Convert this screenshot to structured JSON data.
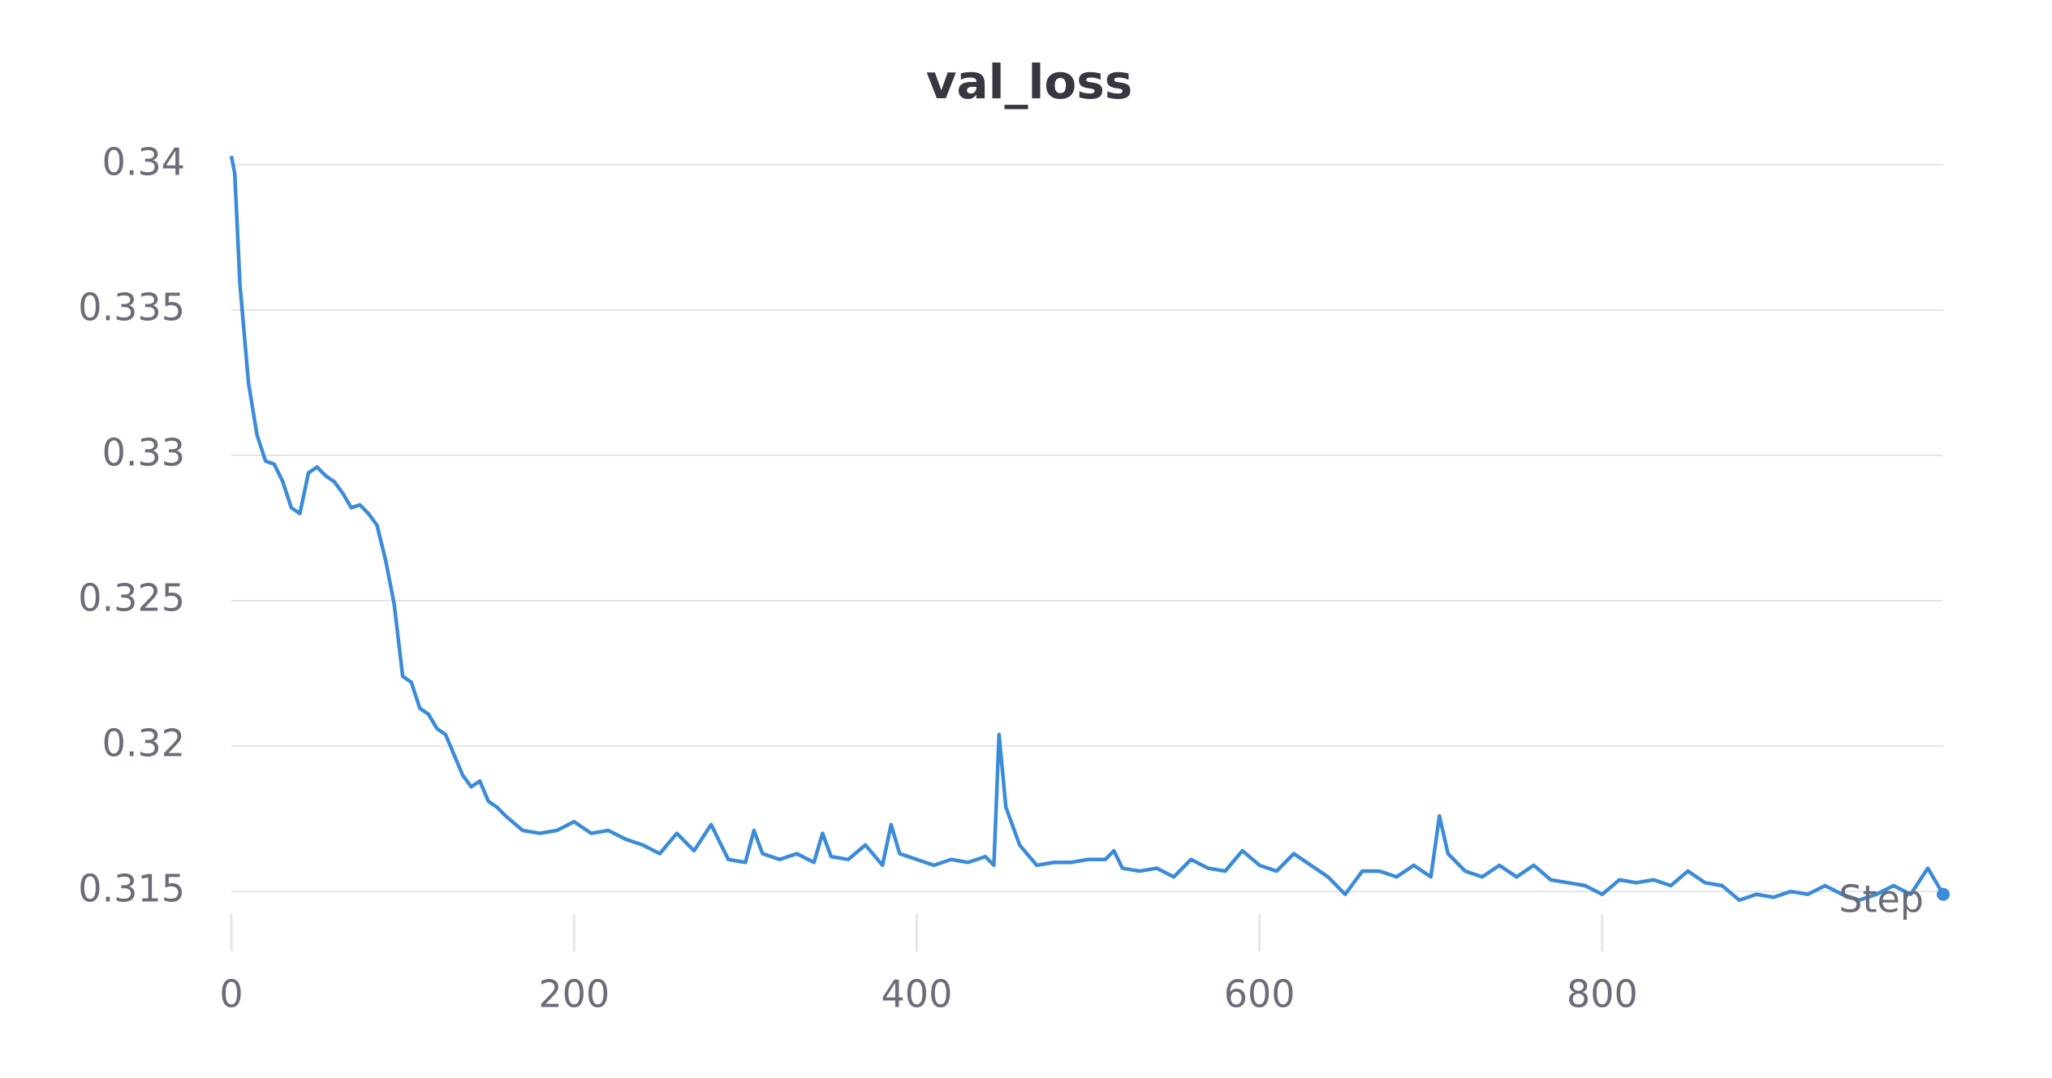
{
  "chart_data": {
    "type": "line",
    "title": "val_loss",
    "x_label": "Step",
    "xlim": [
      0,
      999
    ],
    "xticks": [
      0,
      200,
      400,
      600,
      800
    ],
    "ylim": [
      0.314,
      0.3405
    ],
    "yticks": [
      0.315,
      0.32,
      0.325,
      0.33,
      0.335,
      0.34
    ],
    "grid": true,
    "end_marker": true,
    "x": [
      0,
      2,
      5,
      10,
      15,
      20,
      25,
      30,
      35,
      40,
      45,
      50,
      55,
      60,
      65,
      70,
      75,
      80,
      85,
      90,
      95,
      100,
      105,
      110,
      115,
      120,
      125,
      130,
      135,
      140,
      145,
      150,
      155,
      160,
      170,
      180,
      190,
      200,
      210,
      220,
      230,
      240,
      250,
      260,
      270,
      280,
      290,
      300,
      305,
      310,
      320,
      330,
      340,
      345,
      350,
      360,
      370,
      380,
      385,
      390,
      400,
      410,
      420,
      430,
      440,
      445,
      448,
      452,
      460,
      470,
      480,
      490,
      500,
      510,
      515,
      520,
      530,
      540,
      550,
      560,
      570,
      580,
      590,
      600,
      610,
      620,
      630,
      640,
      650,
      660,
      670,
      680,
      690,
      700,
      705,
      710,
      720,
      730,
      740,
      750,
      760,
      770,
      780,
      790,
      800,
      810,
      820,
      830,
      840,
      850,
      860,
      870,
      880,
      890,
      900,
      910,
      920,
      930,
      940,
      950,
      960,
      970,
      980,
      990,
      999
    ],
    "series": [
      {
        "color": "#3a8bd8",
        "values": [
          0.3403,
          0.3397,
          0.3359,
          0.3325,
          0.3307,
          0.3298,
          0.3297,
          0.3291,
          0.3282,
          0.328,
          0.3294,
          0.3296,
          0.3293,
          0.3291,
          0.3287,
          0.3282,
          0.3283,
          0.328,
          0.3276,
          0.3264,
          0.3249,
          0.3224,
          0.3222,
          0.3213,
          0.3211,
          0.3206,
          0.3204,
          0.3197,
          0.319,
          0.3186,
          0.3188,
          0.3181,
          0.3179,
          0.3176,
          0.3171,
          0.317,
          0.3171,
          0.3174,
          0.317,
          0.3171,
          0.3168,
          0.3166,
          0.3163,
          0.317,
          0.3164,
          0.3173,
          0.3161,
          0.316,
          0.3171,
          0.3163,
          0.3161,
          0.3163,
          0.316,
          0.317,
          0.3162,
          0.3161,
          0.3166,
          0.3159,
          0.3173,
          0.3163,
          0.3161,
          0.3159,
          0.3161,
          0.316,
          0.3162,
          0.3159,
          0.3204,
          0.3179,
          0.3166,
          0.3159,
          0.316,
          0.316,
          0.3161,
          0.3161,
          0.3164,
          0.3158,
          0.3157,
          0.3158,
          0.3155,
          0.3161,
          0.3158,
          0.3157,
          0.3164,
          0.3159,
          0.3157,
          0.3163,
          0.3159,
          0.3155,
          0.3149,
          0.3157,
          0.3157,
          0.3155,
          0.3159,
          0.3155,
          0.3176,
          0.3163,
          0.3157,
          0.3155,
          0.3159,
          0.3155,
          0.3159,
          0.3154,
          0.3153,
          0.3152,
          0.3149,
          0.3154,
          0.3153,
          0.3154,
          0.3152,
          0.3157,
          0.3153,
          0.3152,
          0.3147,
          0.3149,
          0.3148,
          0.315,
          0.3149,
          0.3152,
          0.3149,
          0.3147,
          0.3149,
          0.3152,
          0.3149,
          0.3158,
          0.3149
        ]
      }
    ]
  }
}
